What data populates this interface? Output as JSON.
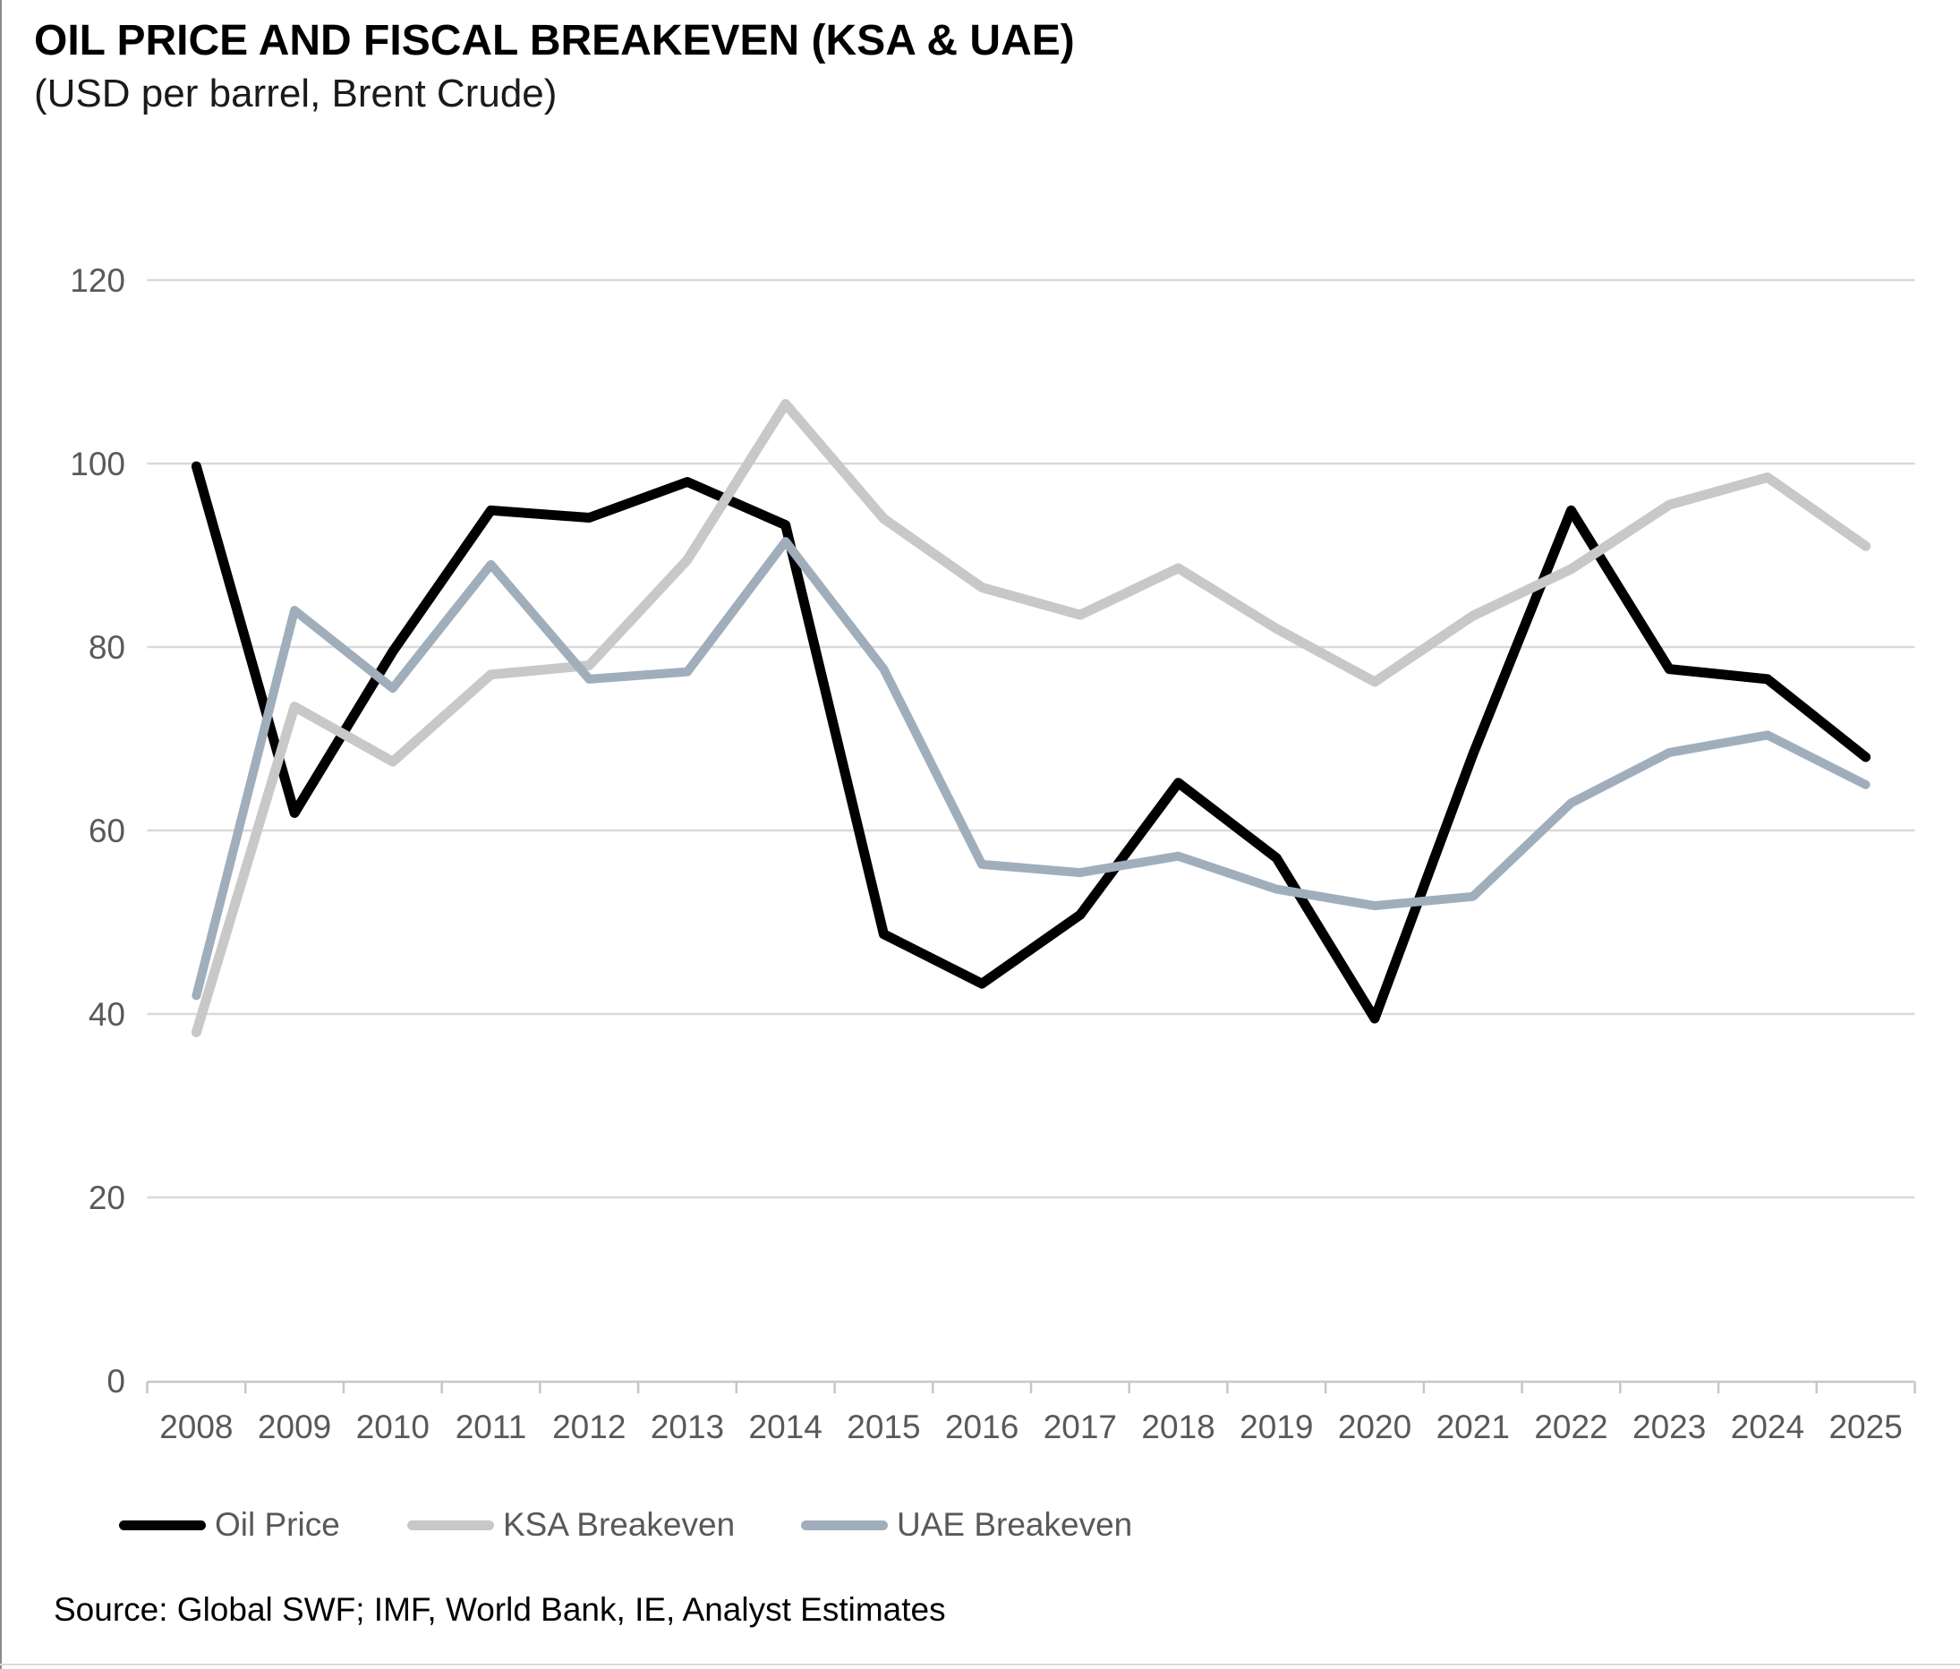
{
  "source": "Source: Global SWF; IMF, World Bank, IE, Analyst Estimates",
  "colors": {
    "oil_price": "#000000",
    "ksa_breakeven": "#C8C8C8",
    "uae_breakeven": "#A0AEBC",
    "gridline": "#D9D9D9",
    "axis_line": "#C7C7C7",
    "tick_label": "#595959",
    "title_text": "#000000"
  },
  "legend": {
    "items": [
      {
        "label": "Oil Price",
        "color": "#000000"
      },
      {
        "label": "KSA Breakeven",
        "color": "#C8C8C8"
      },
      {
        "label": "UAE Breakeven",
        "color": "#A0AEBC"
      }
    ]
  },
  "chart_data": {
    "type": "line",
    "title": "OIL PRICE AND FISCAL BREAKEVEN (KSA & UAE)",
    "subtitle": "(USD per barrel, Brent Crude)",
    "xlabel": "",
    "ylabel": "",
    "ylim": [
      0,
      120
    ],
    "ytick_step": 20,
    "grid": true,
    "legend_position": "bottom",
    "x": [
      "2008",
      "2009",
      "2010",
      "2011",
      "2012",
      "2013",
      "2014",
      "2015",
      "2016",
      "2017",
      "2018",
      "2019",
      "2020",
      "2021",
      "2022",
      "2023",
      "2024",
      "2025"
    ],
    "series": [
      {
        "name": "Oil Price",
        "color": "#000000",
        "stroke_width": 11,
        "values": [
          99.7,
          61.9,
          79.5,
          94.9,
          94.1,
          98.0,
          93.3,
          48.7,
          43.3,
          50.8,
          65.2,
          57.0,
          39.5,
          68.3,
          94.9,
          77.6,
          76.5,
          68.0
        ]
      },
      {
        "name": "KSA Breakeven",
        "color": "#C8C8C8",
        "stroke_width": 11,
        "values": [
          38.0,
          73.5,
          67.5,
          77.0,
          78.0,
          89.5,
          106.5,
          94.0,
          86.5,
          83.5,
          88.6,
          82.0,
          76.2,
          83.4,
          88.5,
          95.5,
          98.5,
          91.0
        ]
      },
      {
        "name": "UAE Breakeven",
        "color": "#A0AEBC",
        "stroke_width": 10,
        "values": [
          42.0,
          84.0,
          75.5,
          89.0,
          76.5,
          77.3,
          91.5,
          77.6,
          56.3,
          55.4,
          57.2,
          53.6,
          51.8,
          52.8,
          63.0,
          68.5,
          70.4,
          65.0
        ]
      }
    ]
  }
}
